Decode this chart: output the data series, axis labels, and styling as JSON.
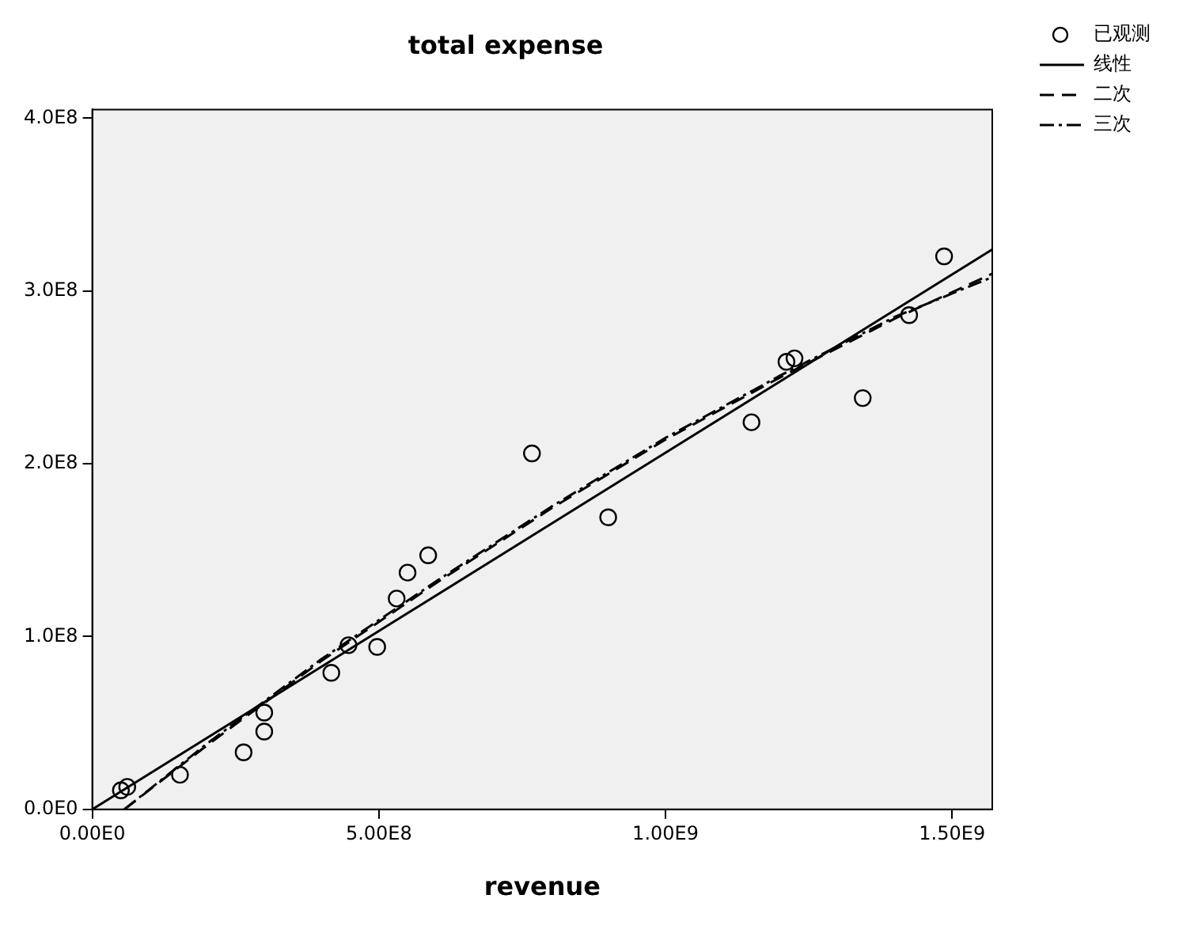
{
  "chart_data": {
    "type": "scatter",
    "title": "total expense",
    "xlabel": "revenue",
    "xlim": [
      0,
      1570000000
    ],
    "ylim": [
      0,
      405000000
    ],
    "xticks": [
      {
        "value": 0,
        "label": "0.00E0"
      },
      {
        "value": 500000000,
        "label": "5.00E8"
      },
      {
        "value": 1000000000,
        "label": "1.00E9"
      },
      {
        "value": 1500000000,
        "label": "1.50E9"
      }
    ],
    "yticks": [
      {
        "value": 0,
        "label": "0.0E0"
      },
      {
        "value": 100000000,
        "label": "1.0E8"
      },
      {
        "value": 200000000,
        "label": "2.0E8"
      },
      {
        "value": 300000000,
        "label": "3.0E8"
      },
      {
        "value": 400000000,
        "label": "4.0E8"
      }
    ],
    "grid": false,
    "legend": "top right",
    "series": [
      {
        "name": "已观测",
        "marker": "circle",
        "color": "#000000",
        "x": [
          50000000,
          61000000,
          153000000,
          264000000,
          300000000,
          300000000,
          417000000,
          447000000,
          497000000,
          531000000,
          550000000,
          586000000,
          767000000,
          900000000,
          1150000000,
          1211000000,
          1225000000,
          1344000000,
          1425000000,
          1486000000
        ],
        "values": [
          11000000,
          13000000,
          20000000,
          33000000,
          56000000,
          45000000,
          79000000,
          95000000,
          94000000,
          122000000,
          137000000,
          147000000,
          206000000,
          169000000,
          224000000,
          259000000,
          261000000,
          238000000,
          286000000,
          320000000
        ]
      },
      {
        "name": "线性",
        "type": "line",
        "line_style": "solid",
        "color": "#000000",
        "x": [
          0,
          1570000000
        ],
        "values": [
          0,
          324000000
        ]
      },
      {
        "name": "二次",
        "type": "line",
        "line_style": "dashed",
        "color": "#000000",
        "x": [
          56000000,
          200000000,
          400000000,
          600000000,
          800000000,
          1000000000,
          1200000000,
          1400000000,
          1570000000
        ],
        "values": [
          0,
          37000000,
          86000000,
          131000000,
          174000000,
          214000000,
          250000000,
          284000000,
          310000000
        ]
      },
      {
        "name": "三次",
        "type": "line",
        "line_style": "dotted",
        "color": "#000000",
        "x": [
          56000000,
          200000000,
          400000000,
          600000000,
          800000000,
          1000000000,
          1200000000,
          1400000000,
          1570000000
        ],
        "values": [
          0,
          38000000,
          87000000,
          132000000,
          175000000,
          215000000,
          251000000,
          285000000,
          308000000
        ]
      }
    ]
  }
}
